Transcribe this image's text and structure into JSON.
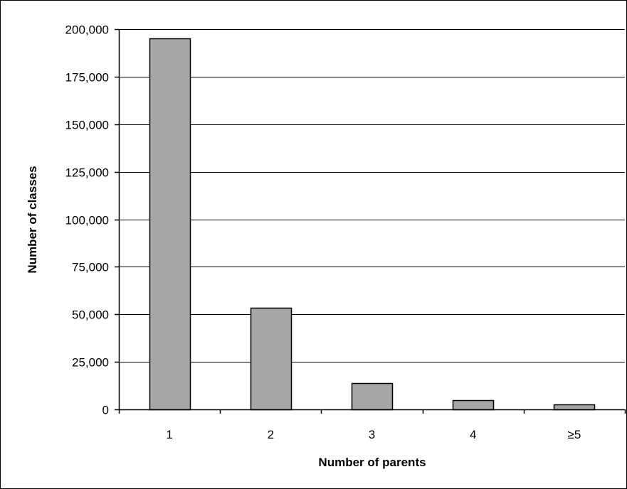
{
  "chart_data": {
    "type": "bar",
    "categories": [
      "1",
      "2",
      "3",
      "4",
      "≥5"
    ],
    "values": [
      195000,
      53500,
      13800,
      4700,
      2600
    ],
    "xlabel": "Number of parents",
    "ylabel": "Number of classes",
    "ylim": [
      0,
      200000
    ],
    "yticks": [
      0,
      25000,
      50000,
      75000,
      100000,
      125000,
      150000,
      175000,
      200000
    ],
    "ytick_labels": [
      "0",
      "25,000",
      "50,000",
      "75,000",
      "100,000",
      "125,000",
      "150,000",
      "175,000",
      "200,000"
    ],
    "grid": "horizontal",
    "legend": "none",
    "colors": {
      "bar_fill": "#a6a6a6",
      "bar_stroke": "#000000",
      "grid": "#000000",
      "axis": "#000000",
      "background": "#ffffff"
    }
  }
}
